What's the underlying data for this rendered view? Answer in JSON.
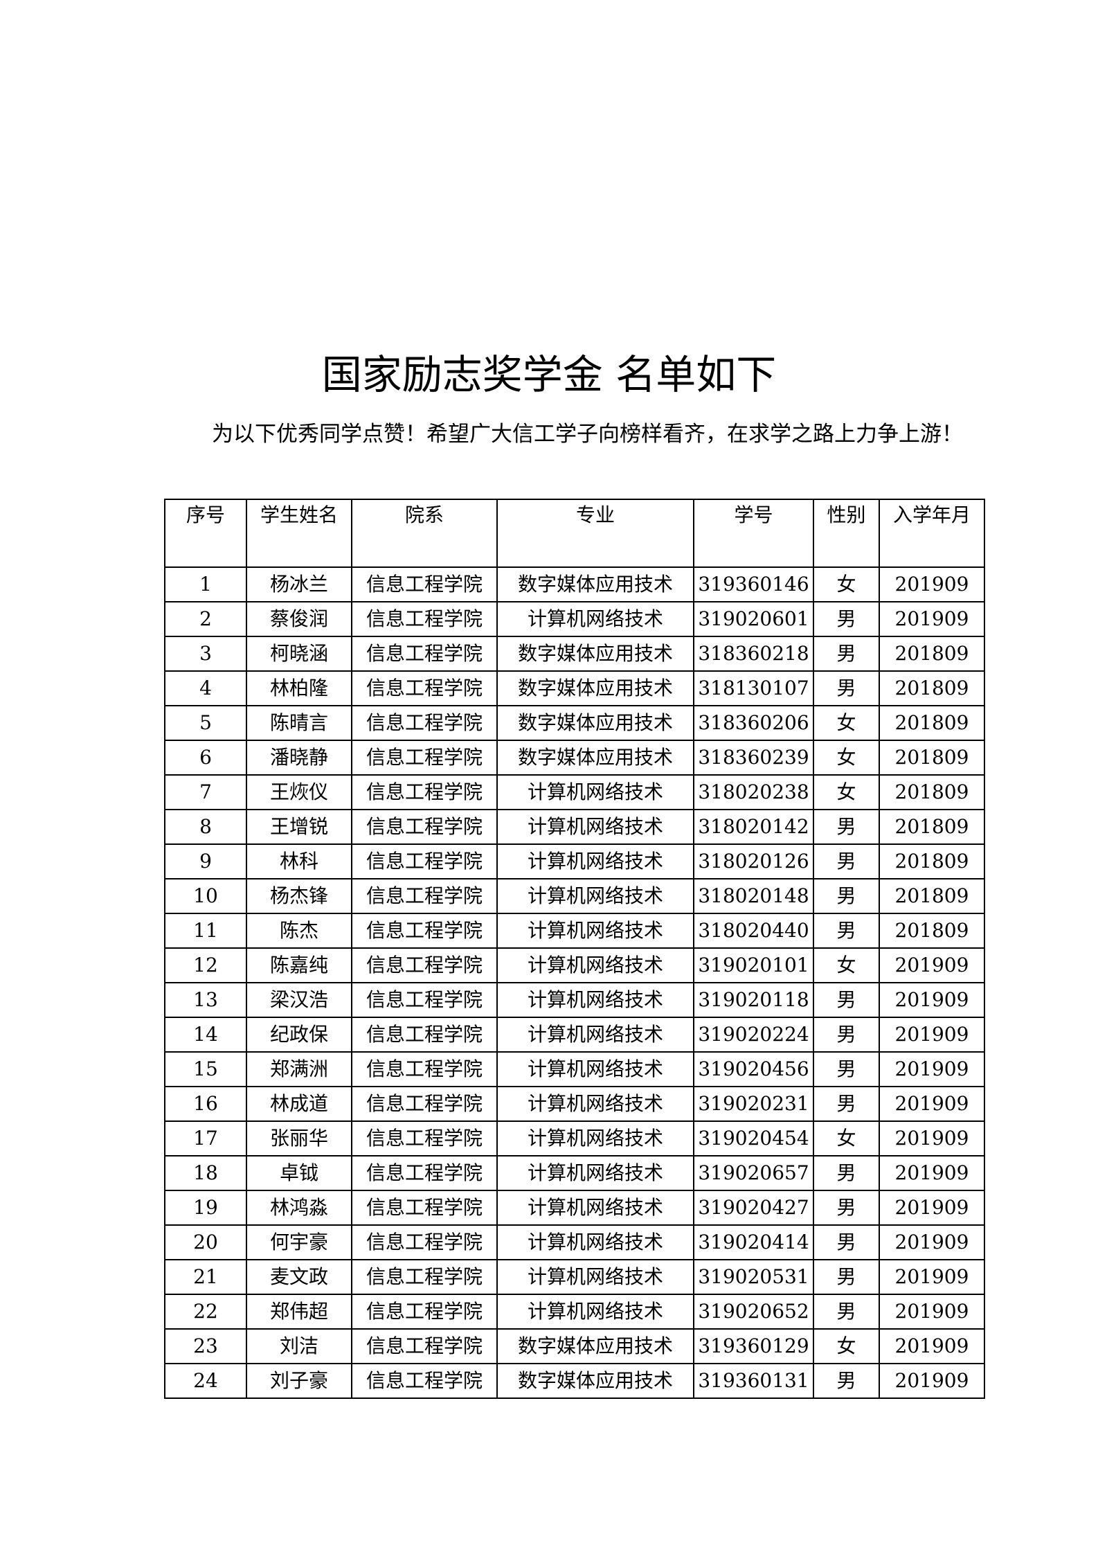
{
  "title": "国家励志奖学金 名单如下",
  "intro": "为以下优秀同学点赞！希望广大信工学子向榜样看齐，在求学之路上力争上游！",
  "table": {
    "headers": [
      "序号",
      "学生姓名",
      "院系",
      "专业",
      "学号",
      "性别",
      "入学年月"
    ],
    "rows": [
      [
        "1",
        "杨冰兰",
        "信息工程学院",
        "数字媒体应用技术",
        "319360146",
        "女",
        "201909"
      ],
      [
        "2",
        "蔡俊润",
        "信息工程学院",
        "计算机网络技术",
        "319020601",
        "男",
        "201909"
      ],
      [
        "3",
        "柯晓涵",
        "信息工程学院",
        "数字媒体应用技术",
        "318360218",
        "男",
        "201809"
      ],
      [
        "4",
        "林柏隆",
        "信息工程学院",
        "数字媒体应用技术",
        "318130107",
        "男",
        "201809"
      ],
      [
        "5",
        "陈晴言",
        "信息工程学院",
        "数字媒体应用技术",
        "318360206",
        "女",
        "201809"
      ],
      [
        "6",
        "潘晓静",
        "信息工程学院",
        "数字媒体应用技术",
        "318360239",
        "女",
        "201809"
      ],
      [
        "7",
        "王烣仪",
        "信息工程学院",
        "计算机网络技术",
        "318020238",
        "女",
        "201809"
      ],
      [
        "8",
        "王增锐",
        "信息工程学院",
        "计算机网络技术",
        "318020142",
        "男",
        "201809"
      ],
      [
        "9",
        "林科",
        "信息工程学院",
        "计算机网络技术",
        "318020126",
        "男",
        "201809"
      ],
      [
        "10",
        "杨杰锋",
        "信息工程学院",
        "计算机网络技术",
        "318020148",
        "男",
        "201809"
      ],
      [
        "11",
        "陈杰",
        "信息工程学院",
        "计算机网络技术",
        "318020440",
        "男",
        "201809"
      ],
      [
        "12",
        "陈嘉纯",
        "信息工程学院",
        "计算机网络技术",
        "319020101",
        "女",
        "201909"
      ],
      [
        "13",
        "梁汉浩",
        "信息工程学院",
        "计算机网络技术",
        "319020118",
        "男",
        "201909"
      ],
      [
        "14",
        "纪政保",
        "信息工程学院",
        "计算机网络技术",
        "319020224",
        "男",
        "201909"
      ],
      [
        "15",
        "郑满洲",
        "信息工程学院",
        "计算机网络技术",
        "319020456",
        "男",
        "201909"
      ],
      [
        "16",
        "林成道",
        "信息工程学院",
        "计算机网络技术",
        "319020231",
        "男",
        "201909"
      ],
      [
        "17",
        "张丽华",
        "信息工程学院",
        "计算机网络技术",
        "319020454",
        "女",
        "201909"
      ],
      [
        "18",
        "卓钺",
        "信息工程学院",
        "计算机网络技术",
        "319020657",
        "男",
        "201909"
      ],
      [
        "19",
        "林鸿淼",
        "信息工程学院",
        "计算机网络技术",
        "319020427",
        "男",
        "201909"
      ],
      [
        "20",
        "何宇豪",
        "信息工程学院",
        "计算机网络技术",
        "319020414",
        "男",
        "201909"
      ],
      [
        "21",
        "麦文政",
        "信息工程学院",
        "计算机网络技术",
        "319020531",
        "男",
        "201909"
      ],
      [
        "22",
        "郑伟超",
        "信息工程学院",
        "计算机网络技术",
        "319020652",
        "男",
        "201909"
      ],
      [
        "23",
        "刘洁",
        "信息工程学院",
        "数字媒体应用技术",
        "319360129",
        "女",
        "201909"
      ],
      [
        "24",
        "刘子豪",
        "信息工程学院",
        "数字媒体应用技术",
        "319360131",
        "男",
        "201909"
      ]
    ]
  }
}
